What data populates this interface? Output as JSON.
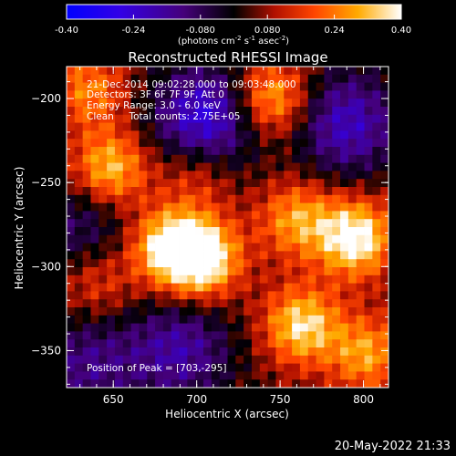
{
  "colorbar": {
    "tick_labels": [
      "-0.40",
      "-0.24",
      "-0.080",
      "0.080",
      "0.24",
      "0.40"
    ],
    "range": [
      -0.4,
      0.4
    ],
    "units_main": "(photons cm",
    "units_sup1": "-2",
    "units_mid": " s",
    "units_sup2": "-1",
    "units_mid2": " asec",
    "units_sup3": "-2",
    "units_end": ")"
  },
  "annotations": {
    "line1": "21-Dec-2014 09:02:28.000 to 09:03:48.000",
    "line2": "Detectors: 3F 6F 7F 9F, Att 0",
    "line3": "Energy Range: 3.0 - 6.0 keV",
    "line4": "Clean     Total counts: 2.75E+05",
    "peak": "Position of Peak = [703,-295]"
  },
  "footer": {
    "timestamp": "20-May-2022 21:33"
  },
  "chart_data": {
    "type": "heatmap",
    "title": "Reconstructed RHESSI Image",
    "xlabel": "Heliocentric X (arcsec)",
    "ylabel": "Heliocentric Y (arcsec)",
    "xlim": [
      622,
      815
    ],
    "ylim": [
      -372,
      -181
    ],
    "x_ticks": [
      650,
      700,
      750,
      800
    ],
    "y_ticks": [
      -200,
      -250,
      -300,
      -350
    ],
    "colormap": "red-temperature (blue/violet negative, black zero, red-orange-yellow-white positive)",
    "value_range": [
      -0.4,
      0.4
    ],
    "grid_cells": [
      40,
      40
    ],
    "peak_position": [
      703,
      -295
    ],
    "sources": [
      {
        "x": 703,
        "y": -295,
        "value": 0.4
      },
      {
        "x": 795,
        "y": -283,
        "value": 0.38
      },
      {
        "x": 683,
        "y": -288,
        "value": 0.33
      },
      {
        "x": 763,
        "y": -335,
        "value": 0.32
      },
      {
        "x": 648,
        "y": -242,
        "value": 0.3
      },
      {
        "x": 745,
        "y": -200,
        "value": 0.28
      },
      {
        "x": 760,
        "y": -272,
        "value": 0.24
      },
      {
        "x": 802,
        "y": -352,
        "value": 0.24
      },
      {
        "x": 700,
        "y": -245,
        "value": 0.14
      },
      {
        "x": 640,
        "y": -310,
        "value": 0.14
      },
      {
        "x": 635,
        "y": -195,
        "value": 0.2
      },
      {
        "x": 690,
        "y": -350,
        "value": -0.22
      },
      {
        "x": 705,
        "y": -212,
        "value": -0.32
      },
      {
        "x": 790,
        "y": -215,
        "value": -0.26
      },
      {
        "x": 635,
        "y": -358,
        "value": -0.18
      },
      {
        "x": 632,
        "y": -275,
        "value": -0.15
      }
    ]
  }
}
